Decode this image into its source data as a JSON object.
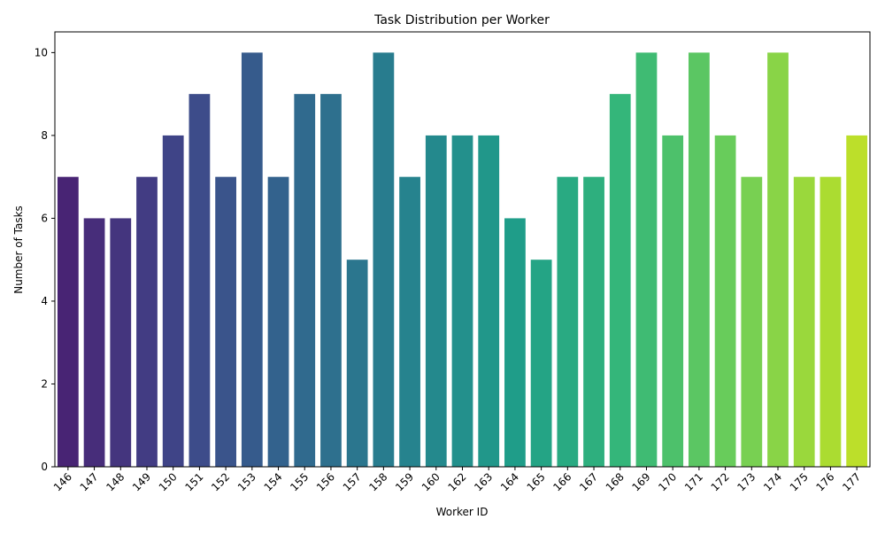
{
  "chart_data": {
    "type": "bar",
    "title": "Task Distribution per Worker",
    "xlabel": "Worker ID",
    "ylabel": "Number of Tasks",
    "categories": [
      "146",
      "147",
      "148",
      "149",
      "150",
      "151",
      "152",
      "153",
      "154",
      "155",
      "156",
      "157",
      "158",
      "159",
      "160",
      "162",
      "163",
      "164",
      "165",
      "166",
      "167",
      "168",
      "169",
      "170",
      "171",
      "172",
      "173",
      "174",
      "175",
      "176",
      "177"
    ],
    "values": [
      7,
      6,
      6,
      7,
      8,
      9,
      7,
      10,
      7,
      9,
      9,
      5,
      10,
      7,
      8,
      8,
      8,
      6,
      5,
      7,
      7,
      9,
      10,
      8,
      10,
      8,
      7,
      10,
      7,
      7,
      8
    ],
    "ylim": [
      0,
      10.5
    ],
    "yticks": [
      0,
      2,
      4,
      6,
      8,
      10
    ],
    "colormap": "viridis",
    "grid": false,
    "legend": "none"
  }
}
